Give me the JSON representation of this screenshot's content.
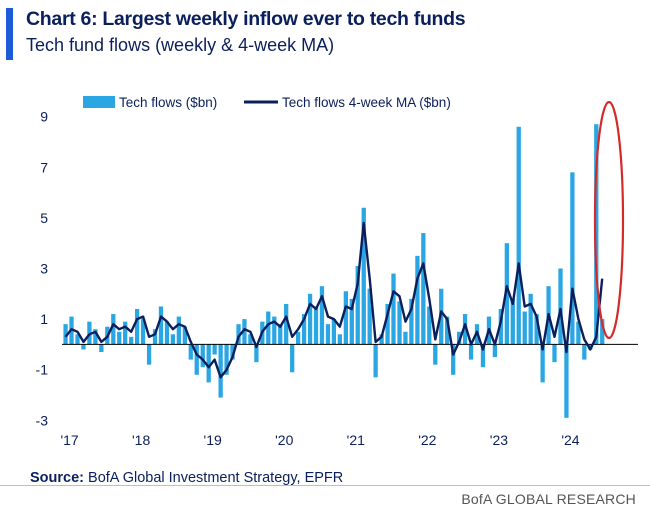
{
  "header": {
    "title": "Chart 6: Largest weekly inflow ever to tech funds",
    "subtitle": "Tech fund flows (weekly & 4-week MA)"
  },
  "footer": {
    "source_label": "Source:",
    "source_text": "BofA Global Investment Strategy, EPFR",
    "brand": "BofA GLOBAL RESEARCH"
  },
  "colors": {
    "accent": "#1e5bd8",
    "bars": "#2aa6e3",
    "ma_line": "#0a1f5c",
    "highlight": "#d42a2a",
    "text": "#0a1f5c"
  },
  "chart_data": {
    "type": "bar",
    "title": "Chart 6: Largest weekly inflow ever to tech funds",
    "subtitle": "Tech fund flows (weekly & 4-week MA)",
    "ylim": [
      -3.5,
      9.5
    ],
    "yticks": [
      -3,
      -1,
      1,
      3,
      5,
      7,
      9
    ],
    "xticks": [
      {
        "label": "'17",
        "x": 2017.0
      },
      {
        "label": "'18",
        "x": 2018.0
      },
      {
        "label": "'19",
        "x": 2019.0
      },
      {
        "label": "'20",
        "x": 2020.0
      },
      {
        "label": "'21",
        "x": 2021.0
      },
      {
        "label": "'22",
        "x": 2022.0
      },
      {
        "label": "'23",
        "x": 2023.0
      },
      {
        "label": "'24",
        "x": 2024.0
      }
    ],
    "xlim": [
      2016.95,
      2025.0
    ],
    "legend": [
      "Tech flows ($bn)",
      "Tech flows 4-week MA ($bn)"
    ],
    "annotation": "Red ellipse highlighting record weekly inflow (~8.7bn) in mid-2024",
    "series": [
      {
        "name": "Tech flows ($bn)",
        "kind": "bar",
        "x": [
          2017.0,
          2017.083,
          2017.167,
          2017.25,
          2017.333,
          2017.417,
          2017.5,
          2017.583,
          2017.667,
          2017.75,
          2017.833,
          2017.917,
          2018.0,
          2018.083,
          2018.167,
          2018.25,
          2018.333,
          2018.417,
          2018.5,
          2018.583,
          2018.667,
          2018.75,
          2018.833,
          2018.917,
          2019.0,
          2019.083,
          2019.167,
          2019.25,
          2019.333,
          2019.417,
          2019.5,
          2019.583,
          2019.667,
          2019.75,
          2019.833,
          2019.917,
          2020.0,
          2020.083,
          2020.167,
          2020.25,
          2020.333,
          2020.417,
          2020.5,
          2020.583,
          2020.667,
          2020.75,
          2020.833,
          2020.917,
          2021.0,
          2021.083,
          2021.167,
          2021.25,
          2021.333,
          2021.417,
          2021.5,
          2021.583,
          2021.667,
          2021.75,
          2021.833,
          2021.917,
          2022.0,
          2022.083,
          2022.167,
          2022.25,
          2022.333,
          2022.417,
          2022.5,
          2022.583,
          2022.667,
          2022.75,
          2022.833,
          2022.917,
          2023.0,
          2023.083,
          2023.167,
          2023.25,
          2023.333,
          2023.417,
          2023.5,
          2023.583,
          2023.667,
          2023.75,
          2023.833,
          2023.917,
          2024.0,
          2024.083,
          2024.167,
          2024.25,
          2024.333,
          2024.417,
          2024.5
        ],
        "values": [
          0.8,
          1.1,
          0.4,
          -0.2,
          0.9,
          0.6,
          -0.3,
          0.7,
          1.2,
          0.5,
          0.9,
          0.3,
          1.4,
          1.0,
          -0.8,
          0.6,
          1.5,
          0.9,
          0.4,
          1.1,
          0.7,
          -0.6,
          -1.2,
          -0.9,
          -1.5,
          -0.4,
          -2.1,
          -1.2,
          -0.6,
          0.8,
          1.0,
          0.4,
          -0.7,
          0.9,
          1.3,
          1.1,
          0.8,
          1.6,
          -1.1,
          0.5,
          1.2,
          2.0,
          1.5,
          2.3,
          0.8,
          1.0,
          0.4,
          2.1,
          1.8,
          3.1,
          5.4,
          2.2,
          -1.3,
          0.4,
          1.6,
          2.8,
          1.7,
          0.5,
          1.8,
          3.5,
          4.4,
          1.5,
          -0.8,
          2.2,
          1.1,
          -1.2,
          0.5,
          1.2,
          -0.6,
          0.8,
          -0.9,
          1.1,
          -0.5,
          1.4,
          4.0,
          1.8,
          8.6,
          1.3,
          2.0,
          1.2,
          -1.5,
          2.3,
          -0.7,
          3.0,
          -2.9,
          6.8,
          0.9,
          -0.6,
          -0.2,
          8.7,
          1.0
        ]
      },
      {
        "name": "Tech flows 4-week MA ($bn)",
        "kind": "line",
        "x": [
          2017.0,
          2017.083,
          2017.167,
          2017.25,
          2017.333,
          2017.417,
          2017.5,
          2017.583,
          2017.667,
          2017.75,
          2017.833,
          2017.917,
          2018.0,
          2018.083,
          2018.167,
          2018.25,
          2018.333,
          2018.417,
          2018.5,
          2018.583,
          2018.667,
          2018.75,
          2018.833,
          2018.917,
          2019.0,
          2019.083,
          2019.167,
          2019.25,
          2019.333,
          2019.417,
          2019.5,
          2019.583,
          2019.667,
          2019.75,
          2019.833,
          2019.917,
          2020.0,
          2020.083,
          2020.167,
          2020.25,
          2020.333,
          2020.417,
          2020.5,
          2020.583,
          2020.667,
          2020.75,
          2020.833,
          2020.917,
          2021.0,
          2021.083,
          2021.167,
          2021.25,
          2021.333,
          2021.417,
          2021.5,
          2021.583,
          2021.667,
          2021.75,
          2021.833,
          2021.917,
          2022.0,
          2022.083,
          2022.167,
          2022.25,
          2022.333,
          2022.417,
          2022.5,
          2022.583,
          2022.667,
          2022.75,
          2022.833,
          2022.917,
          2023.0,
          2023.083,
          2023.167,
          2023.25,
          2023.333,
          2023.417,
          2023.5,
          2023.583,
          2023.667,
          2023.75,
          2023.833,
          2023.917,
          2024.0,
          2024.083,
          2024.167,
          2024.25,
          2024.333,
          2024.417,
          2024.5
        ],
        "values": [
          0.3,
          0.6,
          0.5,
          0.1,
          0.4,
          0.5,
          0.1,
          0.3,
          0.8,
          0.6,
          0.7,
          0.5,
          1.0,
          1.1,
          0.3,
          0.4,
          1.1,
          0.9,
          0.6,
          0.8,
          0.7,
          0.1,
          -0.4,
          -0.6,
          -0.9,
          -0.6,
          -1.3,
          -1.0,
          -0.5,
          0.3,
          0.6,
          0.5,
          -0.1,
          0.5,
          0.8,
          0.9,
          0.7,
          1.1,
          0.3,
          0.6,
          1.0,
          1.6,
          1.4,
          1.9,
          1.1,
          1.0,
          0.7,
          1.5,
          1.4,
          2.4,
          4.8,
          2.6,
          0.1,
          0.3,
          1.2,
          2.1,
          1.9,
          0.9,
          1.4,
          2.6,
          3.2,
          1.8,
          0.2,
          1.3,
          1.0,
          -0.4,
          0.1,
          0.8,
          0.0,
          0.5,
          -0.2,
          0.6,
          0.0,
          0.9,
          2.3,
          1.6,
          3.2,
          1.5,
          1.6,
          1.1,
          -0.2,
          1.2,
          0.3,
          1.4,
          -0.3,
          2.2,
          1.0,
          0.2,
          -0.2,
          0.3,
          2.6
        ]
      }
    ]
  }
}
